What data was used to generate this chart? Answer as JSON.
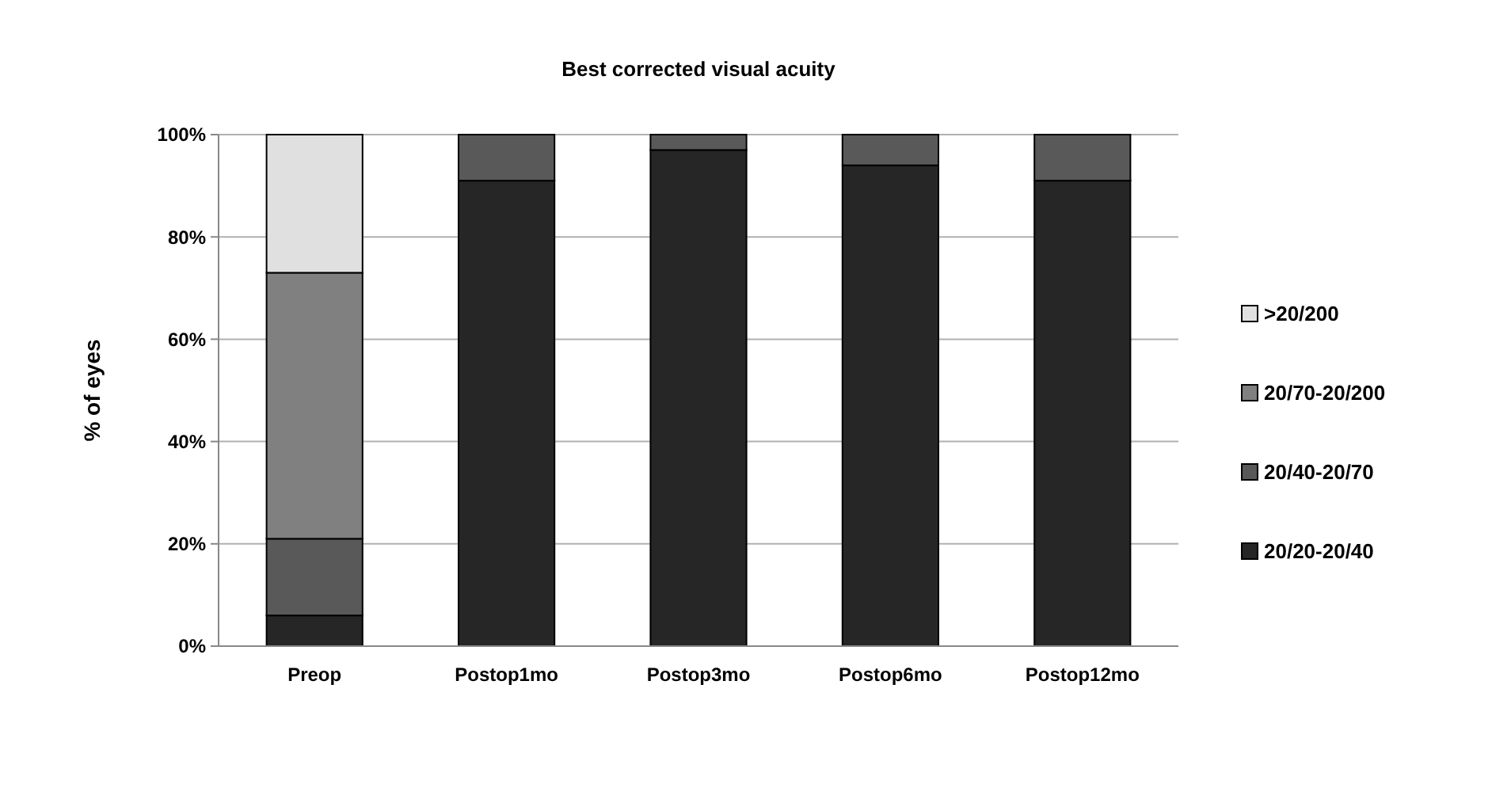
{
  "chart_data": {
    "type": "bar",
    "title": "Best corrected visual acuity",
    "ylabel": "% of eyes",
    "categories": [
      "Preop",
      "Postop1mo",
      "Postop3mo",
      "Postop6mo",
      "Postop12mo"
    ],
    "stacked": true,
    "ylim": [
      0,
      100
    ],
    "yticks": [
      {
        "value": 0,
        "label": "0%"
      },
      {
        "value": 20,
        "label": "20%"
      },
      {
        "value": 40,
        "label": "40%"
      },
      {
        "value": 60,
        "label": "60%"
      },
      {
        "value": 80,
        "label": "80%"
      },
      {
        "value": 100,
        "label": "100%"
      }
    ],
    "grid": "y",
    "legend": "right",
    "series": [
      {
        "name": "20/20-20/40",
        "color": "#262626",
        "values": [
          6,
          91,
          97,
          94,
          91
        ]
      },
      {
        "name": "20/40-20/70",
        "color": "#595959",
        "values": [
          15,
          9,
          3,
          6,
          9
        ]
      },
      {
        "name": "20/70-20/200",
        "color": "#808080",
        "values": [
          52,
          0,
          0,
          0,
          0
        ]
      },
      {
        "name": ">20/200",
        "color": "#e0e0e0",
        "values": [
          27,
          0,
          0,
          0,
          0
        ]
      }
    ]
  }
}
